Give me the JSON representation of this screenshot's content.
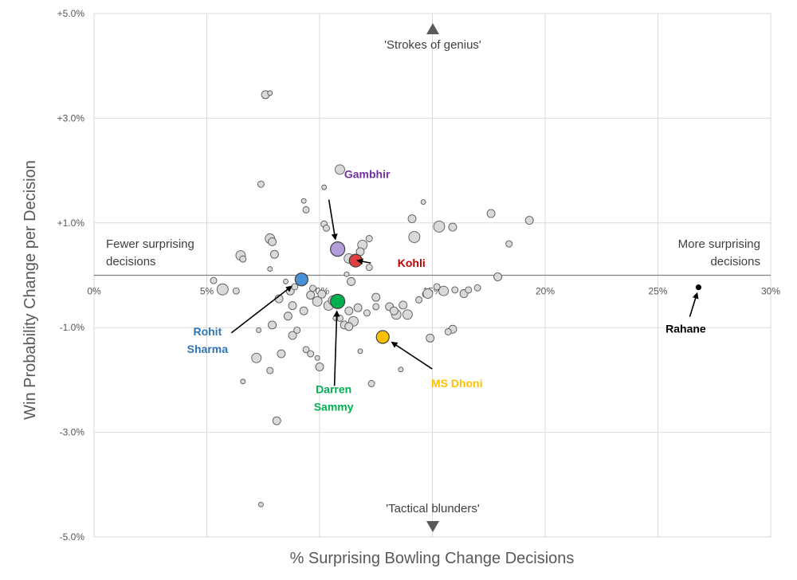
{
  "chart_data": {
    "type": "scatter",
    "xlabel": "% Surprising Bowling Change Decisions",
    "ylabel": "Win Probability Change per Decision",
    "xlim": [
      0,
      30
    ],
    "ylim": [
      -5,
      5
    ],
    "x_ticks": [
      0,
      5,
      10,
      15,
      20,
      25,
      30
    ],
    "x_tick_labels": [
      "0%",
      "5%",
      "10%",
      "15%",
      "20%",
      "25%",
      "30%"
    ],
    "y_ticks": [
      5,
      3,
      1,
      -1,
      -3,
      -5
    ],
    "y_tick_labels": [
      "+5.0%",
      "+3.0%",
      "+1.0%",
      "-1.0%",
      "-3.0%",
      "-5.0%"
    ],
    "grid": true,
    "quadrant_labels": {
      "top": "'Strokes of genius'",
      "bottom": "'Tactical blunders'",
      "left": [
        "Fewer surprising",
        "decisions"
      ],
      "right": [
        "More surprising",
        "decisions"
      ]
    },
    "highlighted": [
      {
        "name": "Gambhir",
        "x": 10.8,
        "y": 0.5,
        "size": 9,
        "color": "#b39ddb",
        "text_color": "#7030a0",
        "label_lines": [
          "Gambhir"
        ]
      },
      {
        "name": "Kohli",
        "x": 11.6,
        "y": 0.28,
        "size": 8,
        "color": "#e04040",
        "text_color": "#c00000",
        "label_lines": [
          "Kohli"
        ]
      },
      {
        "name": "Rohit Sharma",
        "x": 9.2,
        "y": -0.08,
        "size": 8,
        "color": "#4a90d9",
        "text_color": "#2e75b6",
        "label_lines": [
          "Rohit",
          "Sharma"
        ]
      },
      {
        "name": "Darren Sammy",
        "x": 10.8,
        "y": -0.5,
        "size": 9,
        "color": "#00b050",
        "text_color": "#00b050",
        "label_lines": [
          "Darren",
          "Sammy"
        ]
      },
      {
        "name": "MS Dhoni",
        "x": 12.8,
        "y": -1.18,
        "size": 8,
        "color": "#ffc000",
        "text_color": "#ffc000",
        "label_lines": [
          "MS Dhoni"
        ]
      },
      {
        "name": "Rahane",
        "x": 26.8,
        "y": -0.23,
        "size": 3,
        "color": "#000000",
        "text_color": "#000000",
        "label_lines": [
          "Rahane"
        ]
      }
    ],
    "series": [
      {
        "name": "Other players",
        "color": "#d9d9d9",
        "points": [
          {
            "x": 7.6,
            "y": 3.45,
            "s": 5
          },
          {
            "x": 7.8,
            "y": 3.48,
            "s": 3
          },
          {
            "x": 10.9,
            "y": 2.02,
            "s": 6
          },
          {
            "x": 7.4,
            "y": 1.74,
            "s": 4
          },
          {
            "x": 10.2,
            "y": 1.68,
            "s": 3
          },
          {
            "x": 9.3,
            "y": 1.42,
            "s": 3
          },
          {
            "x": 9.4,
            "y": 1.25,
            "s": 4
          },
          {
            "x": 14.6,
            "y": 1.4,
            "s": 3
          },
          {
            "x": 17.6,
            "y": 1.18,
            "s": 5
          },
          {
            "x": 19.3,
            "y": 1.05,
            "s": 5
          },
          {
            "x": 14.1,
            "y": 1.08,
            "s": 5
          },
          {
            "x": 15.3,
            "y": 0.93,
            "s": 7
          },
          {
            "x": 15.9,
            "y": 0.92,
            "s": 5
          },
          {
            "x": 14.2,
            "y": 0.73,
            "s": 7
          },
          {
            "x": 12.2,
            "y": 0.7,
            "s": 4
          },
          {
            "x": 10.2,
            "y": 0.98,
            "s": 4
          },
          {
            "x": 10.3,
            "y": 0.9,
            "s": 4
          },
          {
            "x": 7.8,
            "y": 0.7,
            "s": 6
          },
          {
            "x": 7.9,
            "y": 0.64,
            "s": 5
          },
          {
            "x": 6.5,
            "y": 0.38,
            "s": 6
          },
          {
            "x": 6.6,
            "y": 0.31,
            "s": 4
          },
          {
            "x": 8.0,
            "y": 0.4,
            "s": 5
          },
          {
            "x": 18.4,
            "y": 0.6,
            "s": 4
          },
          {
            "x": 11.9,
            "y": 0.58,
            "s": 6
          },
          {
            "x": 11.8,
            "y": 0.45,
            "s": 5
          },
          {
            "x": 11.3,
            "y": 0.32,
            "s": 6
          },
          {
            "x": 12.2,
            "y": 0.15,
            "s": 4
          },
          {
            "x": 11.2,
            "y": 0.02,
            "s": 3
          },
          {
            "x": 11.4,
            "y": -0.12,
            "s": 5
          },
          {
            "x": 7.8,
            "y": 0.12,
            "s": 3
          },
          {
            "x": 5.3,
            "y": -0.1,
            "s": 4
          },
          {
            "x": 5.7,
            "y": -0.27,
            "s": 7
          },
          {
            "x": 6.3,
            "y": -0.3,
            "s": 4
          },
          {
            "x": 8.5,
            "y": -0.12,
            "s": 3
          },
          {
            "x": 9.7,
            "y": -0.25,
            "s": 4
          },
          {
            "x": 9.6,
            "y": -0.38,
            "s": 5
          },
          {
            "x": 9.9,
            "y": -0.5,
            "s": 6
          },
          {
            "x": 10.1,
            "y": -0.36,
            "s": 5
          },
          {
            "x": 10.4,
            "y": -0.58,
            "s": 6
          },
          {
            "x": 10.6,
            "y": -0.48,
            "s": 6
          },
          {
            "x": 11.3,
            "y": -0.68,
            "s": 5
          },
          {
            "x": 12.5,
            "y": -0.42,
            "s": 5
          },
          {
            "x": 12.5,
            "y": -0.6,
            "s": 4
          },
          {
            "x": 12.1,
            "y": -0.72,
            "s": 4
          },
          {
            "x": 13.1,
            "y": -0.6,
            "s": 5
          },
          {
            "x": 13.4,
            "y": -0.75,
            "s": 6
          },
          {
            "x": 13.7,
            "y": -0.57,
            "s": 5
          },
          {
            "x": 13.3,
            "y": -0.68,
            "s": 5
          },
          {
            "x": 13.9,
            "y": -0.75,
            "s": 6
          },
          {
            "x": 14.4,
            "y": -0.47,
            "s": 4
          },
          {
            "x": 14.7,
            "y": -0.36,
            "s": 4
          },
          {
            "x": 14.8,
            "y": -0.35,
            "s": 6
          },
          {
            "x": 15.2,
            "y": -0.22,
            "s": 4
          },
          {
            "x": 15.5,
            "y": -0.3,
            "s": 6
          },
          {
            "x": 16.0,
            "y": -0.28,
            "s": 4
          },
          {
            "x": 16.4,
            "y": -0.35,
            "s": 5
          },
          {
            "x": 16.6,
            "y": -0.28,
            "s": 4
          },
          {
            "x": 17.0,
            "y": -0.24,
            "s": 4
          },
          {
            "x": 17.9,
            "y": -0.03,
            "s": 5
          },
          {
            "x": 15.9,
            "y": -1.03,
            "s": 5
          },
          {
            "x": 15.7,
            "y": -1.08,
            "s": 4
          },
          {
            "x": 14.9,
            "y": -1.2,
            "s": 5
          },
          {
            "x": 11.5,
            "y": -0.88,
            "s": 6
          },
          {
            "x": 11.1,
            "y": -0.95,
            "s": 5
          },
          {
            "x": 11.3,
            "y": -0.98,
            "s": 5
          },
          {
            "x": 10.9,
            "y": -0.82,
            "s": 4
          },
          {
            "x": 9.3,
            "y": -0.68,
            "s": 5
          },
          {
            "x": 8.8,
            "y": -0.58,
            "s": 5
          },
          {
            "x": 8.6,
            "y": -0.78,
            "s": 5
          },
          {
            "x": 8.2,
            "y": -0.45,
            "s": 5
          },
          {
            "x": 8.7,
            "y": -0.3,
            "s": 5
          },
          {
            "x": 8.9,
            "y": -0.22,
            "s": 4
          },
          {
            "x": 7.9,
            "y": -0.95,
            "s": 5
          },
          {
            "x": 7.3,
            "y": -1.05,
            "s": 3
          },
          {
            "x": 8.8,
            "y": -1.15,
            "s": 5
          },
          {
            "x": 9.0,
            "y": -1.05,
            "s": 4
          },
          {
            "x": 9.4,
            "y": -1.42,
            "s": 4
          },
          {
            "x": 9.6,
            "y": -1.5,
            "s": 4
          },
          {
            "x": 9.9,
            "y": -1.58,
            "s": 3
          },
          {
            "x": 10.0,
            "y": -1.75,
            "s": 5
          },
          {
            "x": 8.3,
            "y": -1.5,
            "s": 5
          },
          {
            "x": 7.2,
            "y": -1.58,
            "s": 6
          },
          {
            "x": 7.8,
            "y": -1.82,
            "s": 4
          },
          {
            "x": 6.6,
            "y": -2.03,
            "s": 3
          },
          {
            "x": 8.1,
            "y": -2.78,
            "s": 5
          },
          {
            "x": 7.4,
            "y": -4.38,
            "s": 3
          },
          {
            "x": 11.8,
            "y": -1.45,
            "s": 3
          },
          {
            "x": 12.3,
            "y": -2.07,
            "s": 4
          },
          {
            "x": 13.6,
            "y": -1.8,
            "s": 3
          },
          {
            "x": 10.7,
            "y": -0.82,
            "s": 3
          },
          {
            "x": 11.7,
            "y": -0.62,
            "s": 5
          }
        ]
      }
    ]
  }
}
